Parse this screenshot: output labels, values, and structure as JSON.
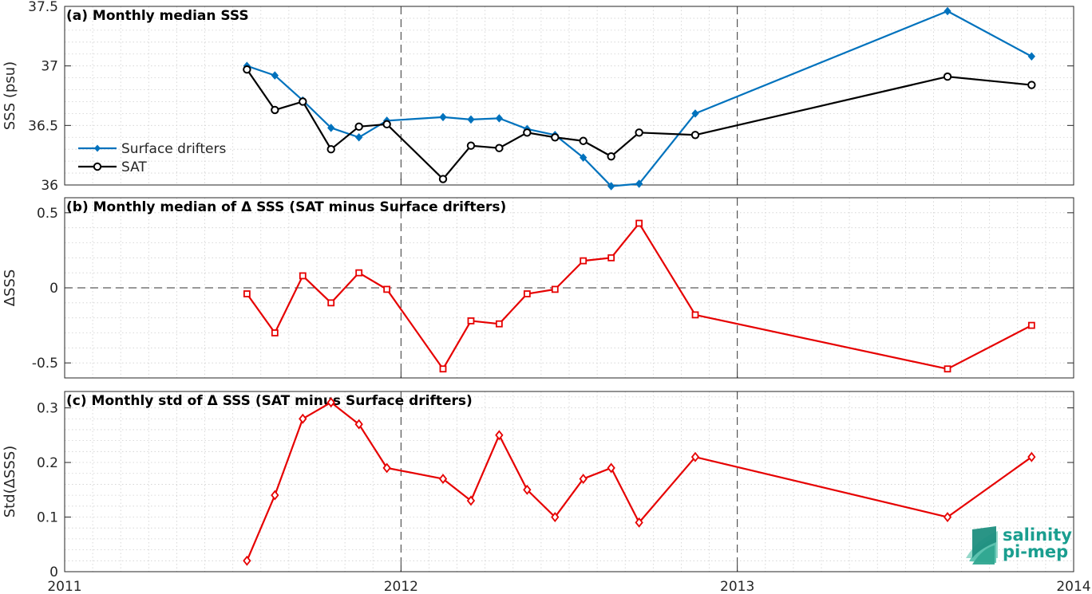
{
  "chart_data": [
    {
      "type": "line",
      "title": "(a) Monthly median SSS",
      "xlabel": "",
      "ylabel": "SSS (psu)",
      "xlim": [
        2011,
        2014
      ],
      "ylim": [
        36,
        37.5
      ],
      "yticks": [
        36,
        36.5,
        37,
        37.5
      ],
      "yticklabels": [
        "36",
        "36.5",
        "37",
        "37.5"
      ],
      "grid": true,
      "legend": "middle-left",
      "series": [
        {
          "name": "Surface drifters",
          "color": "#0072BD",
          "marker": "diamond",
          "x": [
            2011.542,
            2011.625,
            2011.708,
            2011.792,
            2011.875,
            2011.958,
            2012.125,
            2012.208,
            2012.292,
            2012.375,
            2012.458,
            2012.542,
            2012.625,
            2012.708,
            2012.875,
            2013.625,
            2013.875
          ],
          "values": [
            37.0,
            36.92,
            36.71,
            36.48,
            36.4,
            36.54,
            36.57,
            36.55,
            36.56,
            36.47,
            36.42,
            36.23,
            35.99,
            36.01,
            36.6,
            37.46,
            37.08
          ]
        },
        {
          "name": "SAT",
          "color": "#000000",
          "marker": "circle",
          "x": [
            2011.542,
            2011.625,
            2011.708,
            2011.792,
            2011.875,
            2011.958,
            2012.125,
            2012.208,
            2012.292,
            2012.375,
            2012.458,
            2012.542,
            2012.625,
            2012.708,
            2012.875,
            2013.625,
            2013.875
          ],
          "values": [
            36.97,
            36.63,
            36.7,
            36.3,
            36.49,
            36.51,
            36.05,
            36.33,
            36.31,
            36.44,
            36.4,
            36.37,
            36.24,
            36.44,
            36.42,
            36.91,
            36.84
          ]
        }
      ]
    },
    {
      "type": "line",
      "title": "(b) Monthly median of Δ SSS (SAT minus Surface drifters)",
      "xlabel": "",
      "ylabel": "ΔSSS",
      "xlim": [
        2011,
        2014
      ],
      "ylim": [
        -0.6,
        0.6
      ],
      "yticks": [
        -0.5,
        0,
        0.5
      ],
      "yticklabels": [
        "-0.5",
        "0",
        "0.5"
      ],
      "grid": true,
      "zero_line": "dashed",
      "series": [
        {
          "color": "#E60000",
          "marker": "square",
          "x": [
            2011.542,
            2011.625,
            2011.708,
            2011.792,
            2011.875,
            2011.958,
            2012.125,
            2012.208,
            2012.292,
            2012.375,
            2012.458,
            2012.542,
            2012.625,
            2012.708,
            2012.875,
            2013.625,
            2013.875
          ],
          "values": [
            -0.04,
            -0.3,
            0.08,
            -0.1,
            0.1,
            -0.01,
            -0.54,
            -0.22,
            -0.24,
            -0.04,
            -0.01,
            0.18,
            0.2,
            0.43,
            -0.18,
            -0.54,
            -0.25
          ]
        }
      ]
    },
    {
      "type": "line",
      "title": "(c) Monthly std of Δ SSS (SAT minus Surface drifters)",
      "xlabel": "",
      "ylabel": "Std(ΔSSS)",
      "xlim": [
        2011,
        2014
      ],
      "ylim": [
        0,
        0.33
      ],
      "yticks": [
        0,
        0.1,
        0.2,
        0.3
      ],
      "yticklabels": [
        "0",
        "0.1",
        "0.2",
        "0.3"
      ],
      "xticks": [
        2011,
        2012,
        2013,
        2014
      ],
      "xticklabels": [
        "2011",
        "2012",
        "2013",
        "2014"
      ],
      "grid": true,
      "series": [
        {
          "color": "#E60000",
          "marker": "diamond-open",
          "x": [
            2011.542,
            2011.625,
            2011.708,
            2011.792,
            2011.875,
            2011.958,
            2012.125,
            2012.208,
            2012.292,
            2012.375,
            2012.458,
            2012.542,
            2012.625,
            2012.708,
            2012.875,
            2013.625,
            2013.875
          ],
          "values": [
            0.02,
            0.14,
            0.28,
            0.31,
            0.27,
            0.19,
            0.17,
            0.13,
            0.25,
            0.15,
            0.1,
            0.17,
            0.19,
            0.09,
            0.21,
            0.1,
            0.21
          ]
        }
      ]
    }
  ],
  "logo": {
    "line1": "salinity",
    "line2": "pi-mep"
  }
}
